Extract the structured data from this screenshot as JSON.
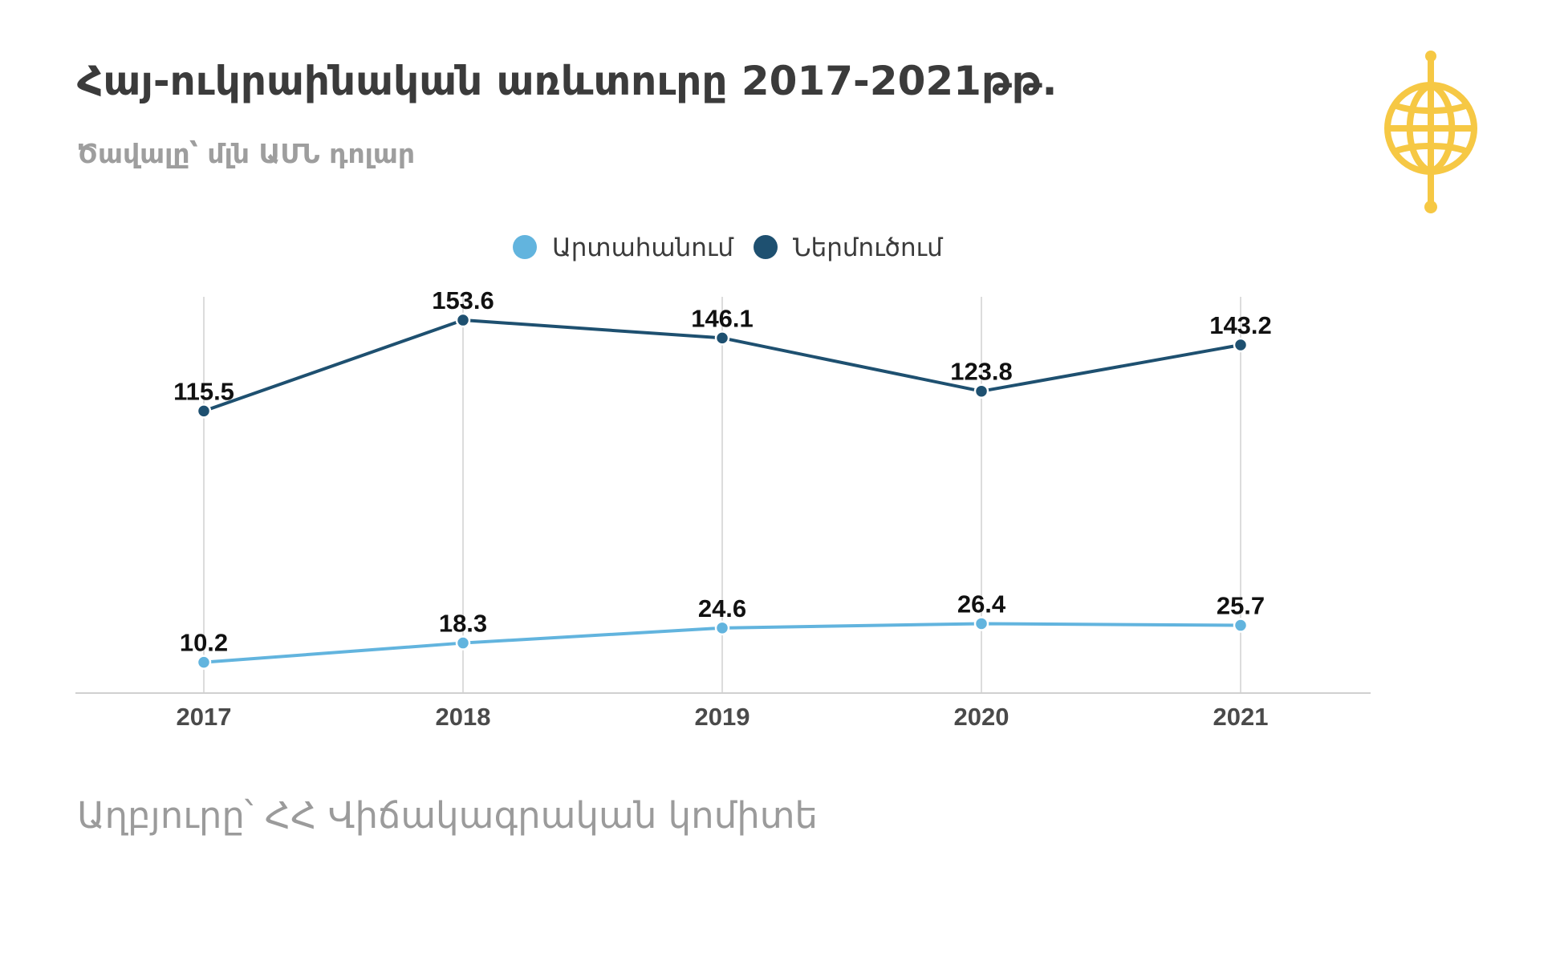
{
  "header": {
    "title": "Հայ-ուկրաինական առևտուրը 2017-2021թթ.",
    "subtitle": "Ծավալը՝ մլն ԱՄՆ դոլար"
  },
  "footer": {
    "source": "Աղբյուրը՝ ՀՀ Վիճակագրական կոմիտե"
  },
  "logo": {
    "icon": "globe-logo-icon",
    "color": "#f6c844"
  },
  "chart_data": {
    "type": "line",
    "title": "Հայ-ուկրաինական առևտուրը 2017-2021թթ.",
    "subtitle": "Ծավալը՝ մլն ԱՄՆ դոլար",
    "x": [
      "2017",
      "2018",
      "2019",
      "2020",
      "2021"
    ],
    "series": [
      {
        "name": "Արտահանում",
        "color": "#62b4de",
        "values": [
          10.2,
          18.3,
          24.6,
          26.4,
          25.7
        ]
      },
      {
        "name": "Ներմուծում",
        "color": "#1e5070",
        "values": [
          115.5,
          153.6,
          146.1,
          123.8,
          143.2
        ]
      }
    ],
    "ylim": [
      0,
      160
    ],
    "grid": "vertical",
    "legend": "top-center",
    "data_labels": true
  }
}
